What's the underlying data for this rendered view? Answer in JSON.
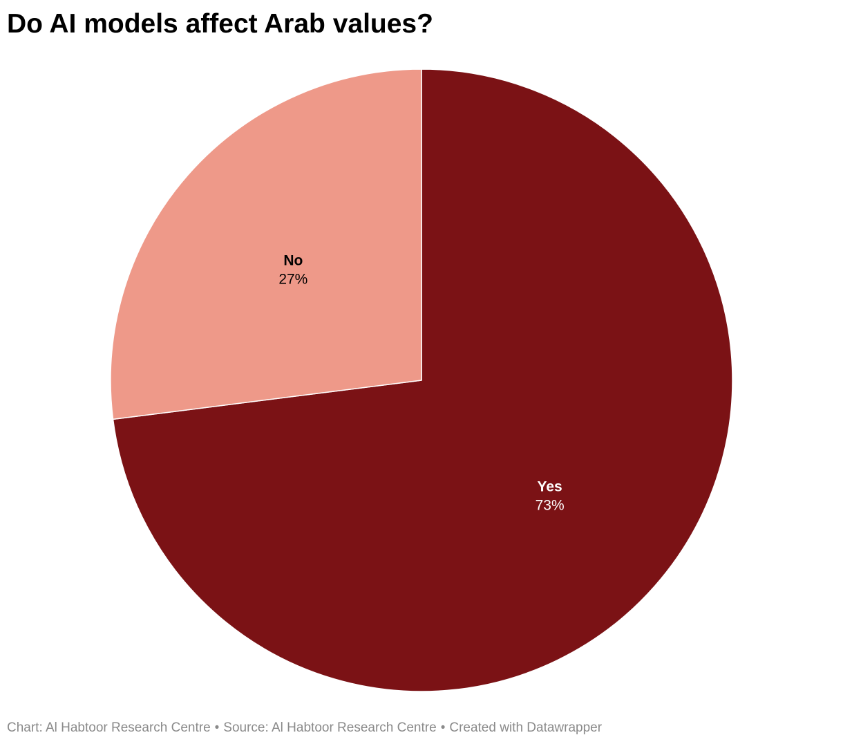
{
  "title": "Do AI models affect Arab values?",
  "chart_data": {
    "type": "pie",
    "start_angle_deg": 0,
    "direction": "clockwise",
    "slices": [
      {
        "label": "Yes",
        "value": 73,
        "display": "73%",
        "color": "#7b1215",
        "label_color": "#ffffff"
      },
      {
        "label": "No",
        "value": 27,
        "display": "27%",
        "color": "#ee9989",
        "label_color": "#000000"
      }
    ],
    "slice_border_color": "#ffffff"
  },
  "footer": {
    "chart_credit": "Chart: Al Habtoor Research Centre",
    "source": "Source: Al Habtoor Research Centre",
    "created_with": "Created with Datawrapper",
    "separator": "•"
  }
}
